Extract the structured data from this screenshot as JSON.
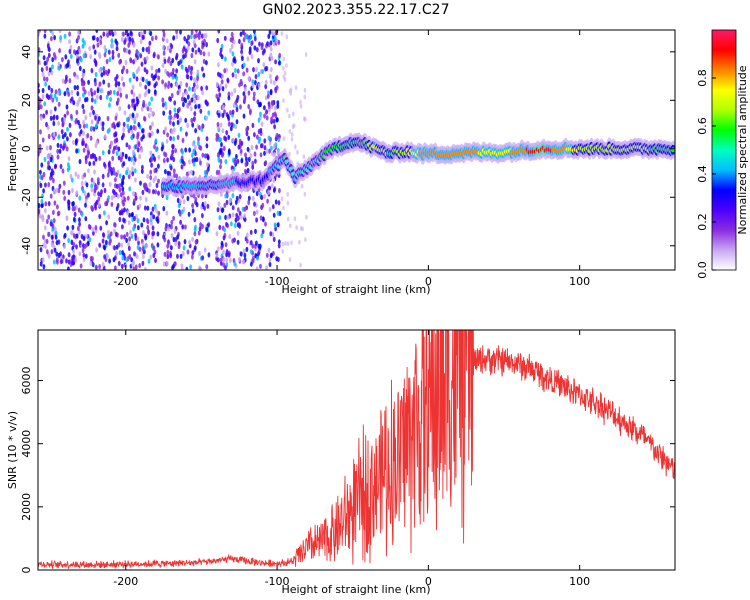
{
  "title": "GN02.2023.355.22.17.C27",
  "chart_data": [
    {
      "type": "heatmap",
      "xlabel": "Height of straight line (km)",
      "ylabel": "Frequency (Hz)",
      "xlim": [
        -258,
        163
      ],
      "ylim": [
        -50,
        49
      ],
      "xticks": [
        -200,
        -100,
        0,
        100
      ],
      "xtick_labels": [
        "-200",
        "-100",
        "0",
        "100"
      ],
      "yticks": [
        -40,
        -20,
        0,
        20,
        40
      ],
      "ytick_labels": [
        "-40",
        "-20",
        "0",
        "20",
        "40"
      ],
      "colorbar": {
        "label": "Normalized spectral amplitude",
        "range": [
          0,
          1
        ],
        "ticks": [
          0.0,
          0.2,
          0.4,
          0.6,
          0.8
        ],
        "tick_labels": [
          "0.0",
          "0.2",
          "0.4",
          "0.6",
          "0.8"
        ],
        "colors": [
          "#ffffff",
          "#c9a6f2",
          "#8a2be2",
          "#4b00ff",
          "#0000ff",
          "#00bfff",
          "#00ffc0",
          "#00ff00",
          "#b0ff00",
          "#ffff00",
          "#ff8000",
          "#ff0000",
          "#ff1a66"
        ]
      },
      "noise_regions": [
        [
          -258,
          -178
        ],
        [
          -176,
          -145
        ],
        [
          -140,
          -98
        ]
      ],
      "ridge": [
        {
          "x": -175,
          "y": -15,
          "a": 0.45
        },
        {
          "x": -155,
          "y": -16,
          "a": 0.4
        },
        {
          "x": -145,
          "y": -15,
          "a": 0.45
        },
        {
          "x": -110,
          "y": -13,
          "a": 0.3
        },
        {
          "x": -95,
          "y": -4,
          "a": 0.55
        },
        {
          "x": -88,
          "y": -12,
          "a": 0.45
        },
        {
          "x": -80,
          "y": -8,
          "a": 0.5
        },
        {
          "x": -70,
          "y": -3,
          "a": 0.55
        },
        {
          "x": -60,
          "y": 1,
          "a": 0.6
        },
        {
          "x": -50,
          "y": 3,
          "a": 0.6
        },
        {
          "x": -42,
          "y": 2,
          "a": 0.55
        },
        {
          "x": -35,
          "y": 0,
          "a": 0.75
        },
        {
          "x": -25,
          "y": -2,
          "a": 0.6
        },
        {
          "x": -15,
          "y": -1,
          "a": 0.7
        },
        {
          "x": -5,
          "y": -2,
          "a": 0.8
        },
        {
          "x": 10,
          "y": -2,
          "a": 0.85
        },
        {
          "x": 30,
          "y": -1.5,
          "a": 0.8
        },
        {
          "x": 50,
          "y": -1.5,
          "a": 0.75
        },
        {
          "x": 75,
          "y": 0,
          "a": 0.95
        },
        {
          "x": 100,
          "y": 0,
          "a": 0.7
        },
        {
          "x": 130,
          "y": 0,
          "a": 0.65
        },
        {
          "x": 163,
          "y": 0,
          "a": 0.6
        }
      ]
    },
    {
      "type": "line",
      "xlabel": "Height of straight line (km)",
      "ylabel": "SNR (10 * v/v)",
      "xlim": [
        -258,
        163
      ],
      "ylim": [
        0,
        7600
      ],
      "xticks": [
        -200,
        -100,
        0,
        100
      ],
      "xtick_labels": [
        "-200",
        "-100",
        "0",
        "100"
      ],
      "yticks": [
        0,
        2000,
        4000,
        6000
      ],
      "ytick_labels": [
        "0",
        "2000",
        "4000",
        "6000"
      ],
      "line_color": "#ee3333",
      "series": [
        {
          "x": [
            -258,
            -220,
            -180,
            -150,
            -130,
            -110,
            -100,
            -90,
            -80,
            -70,
            -60,
            -50,
            -40,
            -30,
            -20,
            -10,
            0,
            10,
            20,
            30,
            40,
            50,
            60,
            70,
            80,
            90,
            100,
            110,
            120,
            130,
            140,
            150,
            163
          ],
          "values": [
            180,
            170,
            200,
            240,
            350,
            220,
            210,
            260,
            700,
            900,
            1300,
            1900,
            2500,
            3100,
            3500,
            4500,
            5300,
            6000,
            6400,
            6600,
            6700,
            6600,
            6500,
            6300,
            6050,
            5800,
            5550,
            5300,
            5000,
            4650,
            4300,
            3800,
            3100
          ]
        }
      ]
    }
  ]
}
